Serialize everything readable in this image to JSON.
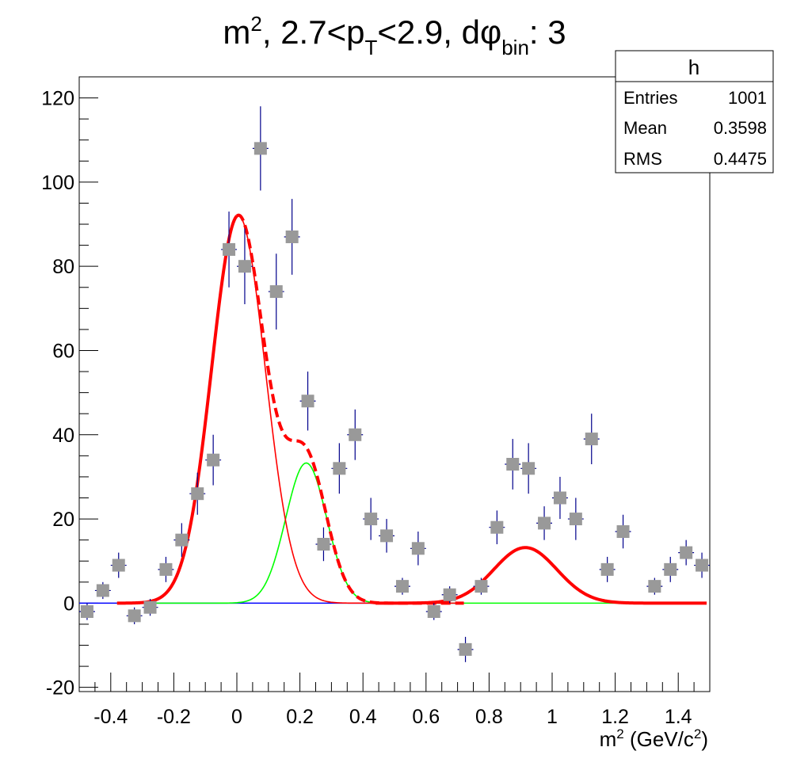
{
  "chart_data": {
    "type": "scatter",
    "title": {
      "pre": "m",
      "pre_sup": "2",
      "mid1": ", 2.7<p",
      "sub1": "T",
      "mid2": "<2.9, d",
      "phi": "φ",
      "sub2": "bin",
      "post": ": 3"
    },
    "xlabel": {
      "base": "m",
      "sup1": "2",
      "rest": " (GeV/c",
      "sup2": "2",
      "close": ")"
    },
    "ylabel": "",
    "xlim": [
      -0.5,
      1.5
    ],
    "ylim": [
      -21,
      125
    ],
    "xticks": [
      -0.4,
      -0.2,
      0,
      0.2,
      0.4,
      0.6,
      0.8,
      1,
      1.2,
      1.4
    ],
    "xtick_labels": [
      "-0.4",
      "-0.2",
      "0",
      "0.2",
      "0.4",
      "0.6",
      "0.8",
      "1",
      "1.2",
      "1.4"
    ],
    "yticks": [
      -20,
      0,
      20,
      40,
      60,
      80,
      100,
      120
    ],
    "ytick_labels": [
      "-20",
      "0",
      "20",
      "40",
      "60",
      "80",
      "100",
      "120"
    ],
    "grid": false,
    "stats_box": {
      "title": "h",
      "rows": [
        {
          "label": "Entries",
          "value": "1001"
        },
        {
          "label": "Mean",
          "value": "0.3598"
        },
        {
          "label": "RMS",
          "value": "0.4475"
        }
      ]
    },
    "points": [
      {
        "x": -0.475,
        "y": -2,
        "err": 2
      },
      {
        "x": -0.425,
        "y": 3,
        "err": 2
      },
      {
        "x": -0.375,
        "y": 9,
        "err": 3
      },
      {
        "x": -0.325,
        "y": -3,
        "err": 2
      },
      {
        "x": -0.275,
        "y": -1,
        "err": 2
      },
      {
        "x": -0.225,
        "y": 8,
        "err": 3
      },
      {
        "x": -0.175,
        "y": 15,
        "err": 4
      },
      {
        "x": -0.125,
        "y": 26,
        "err": 5
      },
      {
        "x": -0.075,
        "y": 34,
        "err": 6
      },
      {
        "x": -0.025,
        "y": 84,
        "err": 9
      },
      {
        "x": 0.025,
        "y": 80,
        "err": 9
      },
      {
        "x": 0.075,
        "y": 108,
        "err": 10
      },
      {
        "x": 0.125,
        "y": 74,
        "err": 9
      },
      {
        "x": 0.175,
        "y": 87,
        "err": 9
      },
      {
        "x": 0.225,
        "y": 48,
        "err": 7
      },
      {
        "x": 0.275,
        "y": 14,
        "err": 4
      },
      {
        "x": 0.325,
        "y": 32,
        "err": 6
      },
      {
        "x": 0.375,
        "y": 40,
        "err": 6
      },
      {
        "x": 0.425,
        "y": 20,
        "err": 5
      },
      {
        "x": 0.475,
        "y": 16,
        "err": 4
      },
      {
        "x": 0.525,
        "y": 4,
        "err": 2
      },
      {
        "x": 0.575,
        "y": 13,
        "err": 4
      },
      {
        "x": 0.625,
        "y": -2,
        "err": 2
      },
      {
        "x": 0.675,
        "y": 2,
        "err": 2
      },
      {
        "x": 0.725,
        "y": -11,
        "err": 3
      },
      {
        "x": 0.775,
        "y": 4,
        "err": 2
      },
      {
        "x": 0.825,
        "y": 18,
        "err": 4
      },
      {
        "x": 0.875,
        "y": 33,
        "err": 6
      },
      {
        "x": 0.925,
        "y": 32,
        "err": 6
      },
      {
        "x": 0.975,
        "y": 19,
        "err": 4
      },
      {
        "x": 1.025,
        "y": 25,
        "err": 5
      },
      {
        "x": 1.075,
        "y": 20,
        "err": 5
      },
      {
        "x": 1.125,
        "y": 39,
        "err": 6
      },
      {
        "x": 1.175,
        "y": 8,
        "err": 3
      },
      {
        "x": 1.225,
        "y": 17,
        "err": 4
      },
      {
        "x": 1.325,
        "y": 4,
        "err": 2
      },
      {
        "x": 1.375,
        "y": 8,
        "err": 3
      },
      {
        "x": 1.425,
        "y": 12,
        "err": 3
      },
      {
        "x": 1.475,
        "y": 9,
        "err": 3
      }
    ],
    "curves": [
      {
        "id": "pion-gauss",
        "color": "#ff0000",
        "style": "solid-thin",
        "A": 92,
        "mu": 0.005,
        "sigma": 0.085,
        "xmin": -0.38,
        "xmax": 0.72
      },
      {
        "id": "kaon-gauss",
        "color": "#00ff00",
        "style": "solid-thin",
        "A": 33.3,
        "mu": 0.22,
        "sigma": 0.065,
        "xmin": -0.38,
        "xmax": 1.23
      },
      {
        "id": "pion-kaon-sum",
        "color": "#ff0000",
        "style": "dashed-thick",
        "xmin": -0.38,
        "xmax": 0.72,
        "sum_of": [
          "pion-gauss",
          "kaon-gauss"
        ]
      },
      {
        "id": "proton-gauss",
        "color": "#ff0000",
        "style": "solid-thick",
        "A": 13.2,
        "mu": 0.915,
        "sigma": 0.1,
        "xmin": 0.45,
        "xmax": 1.49,
        "base_from": -0.38
      },
      {
        "id": "baseline",
        "color": "#0000ff",
        "style": "solid-thin",
        "const": 0,
        "xmin": -0.5,
        "xmax": 0.72
      }
    ],
    "colors": {
      "marker": "#999999",
      "errorbar": "#00008b",
      "frame": "#000000"
    }
  }
}
